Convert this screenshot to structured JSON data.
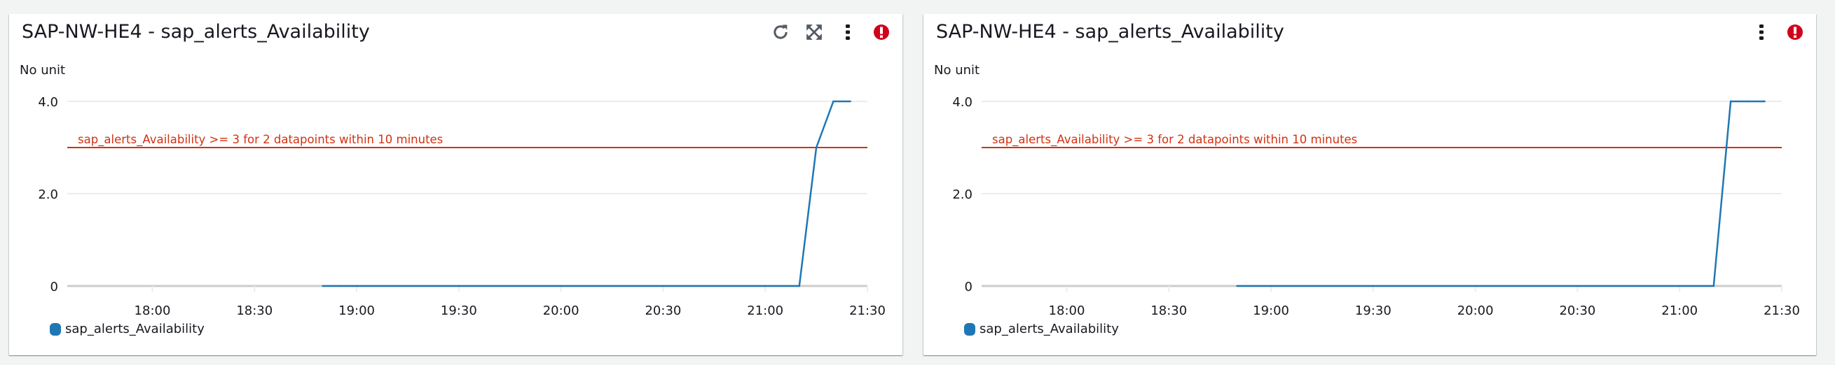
{
  "widgets": [
    {
      "title": "SAP-NW-HE4 - sap_alerts_Availability",
      "unit_label": "No unit",
      "icons": [
        "refresh-icon",
        "fullscreen-icon",
        "more-vertical-icon",
        "alarm-alert-icon"
      ],
      "legend": "sap_alerts_Availability"
    },
    {
      "title": "SAP-NW-HE4 - sap_alerts_Availability",
      "unit_label": "No unit",
      "icons": [
        "more-vertical-icon",
        "alarm-alert-icon"
      ],
      "legend": "sap_alerts_Availability"
    }
  ],
  "colors": {
    "series": "#1f77b4",
    "threshold": "#d13212",
    "alert": "#d0021b",
    "icon": "#545b64"
  },
  "chart_data": [
    {
      "type": "line",
      "ylabel": "No unit",
      "xlim": [
        "17:35",
        "21:30"
      ],
      "ylim": [
        0,
        4
      ],
      "yticks": [
        "0",
        "2.0",
        "4.0"
      ],
      "ytick_values": [
        0,
        2,
        4
      ],
      "xticks": [
        "18:00",
        "18:30",
        "19:00",
        "19:30",
        "20:00",
        "20:30",
        "21:00",
        "21:30"
      ],
      "grid": true,
      "legend_position": "bottom-left",
      "threshold": {
        "value": 3,
        "label": "sap_alerts_Availability >= 3 for 2 datapoints within 10 minutes"
      },
      "series": [
        {
          "name": "sap_alerts_Availability",
          "x": [
            "18:50",
            "18:55",
            "19:00",
            "19:05",
            "19:10",
            "19:15",
            "19:20",
            "19:25",
            "19:30",
            "19:35",
            "19:40",
            "19:45",
            "19:50",
            "19:55",
            "20:00",
            "20:05",
            "20:10",
            "20:15",
            "20:20",
            "20:25",
            "20:30",
            "20:35",
            "20:40",
            "20:45",
            "20:50",
            "20:55",
            "21:00",
            "21:05",
            "21:10",
            "21:15",
            "21:20",
            "21:25"
          ],
          "y": [
            0,
            0,
            0,
            0,
            0,
            0,
            0,
            0,
            0,
            0,
            0,
            0,
            0,
            0,
            0,
            0,
            0,
            0,
            0,
            0,
            0,
            0,
            0,
            0,
            0,
            0,
            0,
            0,
            0,
            3,
            4,
            4
          ]
        }
      ]
    },
    {
      "type": "line",
      "ylabel": "No unit",
      "xlim": [
        "17:35",
        "21:30"
      ],
      "ylim": [
        0,
        4
      ],
      "yticks": [
        "0",
        "2.0",
        "4.0"
      ],
      "ytick_values": [
        0,
        2,
        4
      ],
      "xticks": [
        "18:00",
        "18:30",
        "19:00",
        "19:30",
        "20:00",
        "20:30",
        "21:00",
        "21:30"
      ],
      "grid": true,
      "legend_position": "bottom-left",
      "threshold": {
        "value": 3,
        "label": "sap_alerts_Availability >= 3 for 2 datapoints within 10 minutes"
      },
      "series": [
        {
          "name": "sap_alerts_Availability",
          "x": [
            "18:50",
            "18:55",
            "19:00",
            "19:05",
            "19:10",
            "19:15",
            "19:20",
            "19:25",
            "19:30",
            "19:35",
            "19:40",
            "19:45",
            "19:50",
            "19:55",
            "20:00",
            "20:05",
            "20:10",
            "20:15",
            "20:20",
            "20:25",
            "20:30",
            "20:35",
            "20:40",
            "20:45",
            "20:50",
            "20:55",
            "21:00",
            "21:05",
            "21:10",
            "21:15",
            "21:20",
            "21:25"
          ],
          "y": [
            0,
            0,
            0,
            0,
            0,
            0,
            0,
            0,
            0,
            0,
            0,
            0,
            0,
            0,
            0,
            0,
            0,
            0,
            0,
            0,
            0,
            0,
            0,
            0,
            0,
            0,
            0,
            0,
            0,
            4,
            4,
            4
          ]
        }
      ]
    }
  ]
}
